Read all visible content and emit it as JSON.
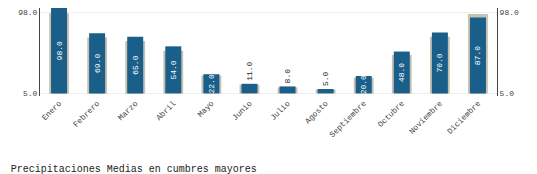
{
  "chart_data": {
    "type": "bar",
    "title": "Precipitaciones Medias en cumbres mayores",
    "categories": [
      "Enero",
      "Febrero",
      "Marzo",
      "Abril",
      "Mayo",
      "Junio",
      "Julio",
      "Agosto",
      "Septiembre",
      "Octubre",
      "Noviembre",
      "Diciembre"
    ],
    "base": 5.0,
    "series": [
      {
        "color": "#c8bfb0",
        "values": [
          92.0,
          64.0,
          60.0,
          49.0,
          20.5,
          10.0,
          7.0,
          4.5,
          18.0,
          44.0,
          65.0,
          91.0
        ]
      },
      {
        "color": "#1a5f8a",
        "values": [
          98.0,
          69.0,
          65.0,
          54.0,
          22.0,
          11.0,
          8.0,
          5.0,
          20.0,
          48.0,
          70.0,
          87.0
        ],
        "data_labels": true,
        "value_labels": [
          "98.0",
          "69.0",
          "65.0",
          "54.0",
          "22.0",
          "11.0",
          "8.0",
          "5.0",
          "20.0",
          "48.0",
          "70.0",
          "87.0"
        ]
      }
    ],
    "ylim": [
      2.0,
      103.0
    ],
    "yticks": [
      {
        "value": 5.0,
        "label": "5.0"
      },
      {
        "value": 98.0,
        "label": "98.0"
      }
    ],
    "y2lim": [
      2.0,
      103.0
    ],
    "y2ticks": [
      {
        "value": 5.0,
        "label": "5.0"
      },
      {
        "value": 98.0,
        "label": "98.0"
      }
    ],
    "grid": true
  }
}
